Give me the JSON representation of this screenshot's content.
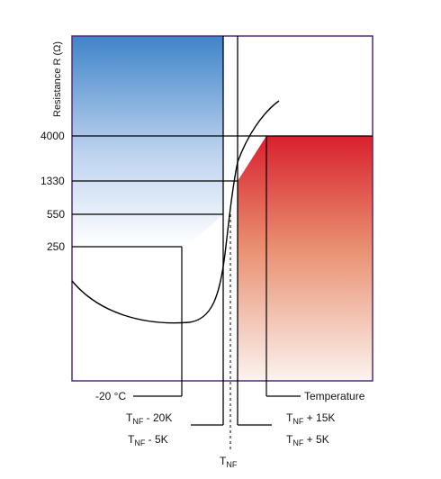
{
  "y_axis": {
    "title": "Resistance R (Ω)",
    "ticks": [
      "4000",
      "1330",
      "550",
      "250"
    ]
  },
  "x_markers": {
    "minus20": "-20 °C",
    "temperature": "Temperature",
    "tnf_minus20k": {
      "main": "T",
      "sub": "NF",
      "suffix": " - 20K"
    },
    "tnf_minus5k": {
      "main": "T",
      "sub": "NF",
      "suffix": " - 5K"
    },
    "tnf_plus15k": {
      "main": "T",
      "sub": "NF",
      "suffix": " + 15K"
    },
    "tnf_plus5k": {
      "main": "T",
      "sub": "NF",
      "suffix": " + 5K"
    },
    "tnf": {
      "main": "T",
      "sub": "NF"
    }
  },
  "colors": {
    "frame": "#4b2d7f",
    "cold_region_top": "#3f84c9",
    "cold_region_bottom": "#ffffff",
    "hot_region_top": "#d9202f",
    "hot_region_bottom": "#ffffff",
    "line": "#000000"
  }
}
